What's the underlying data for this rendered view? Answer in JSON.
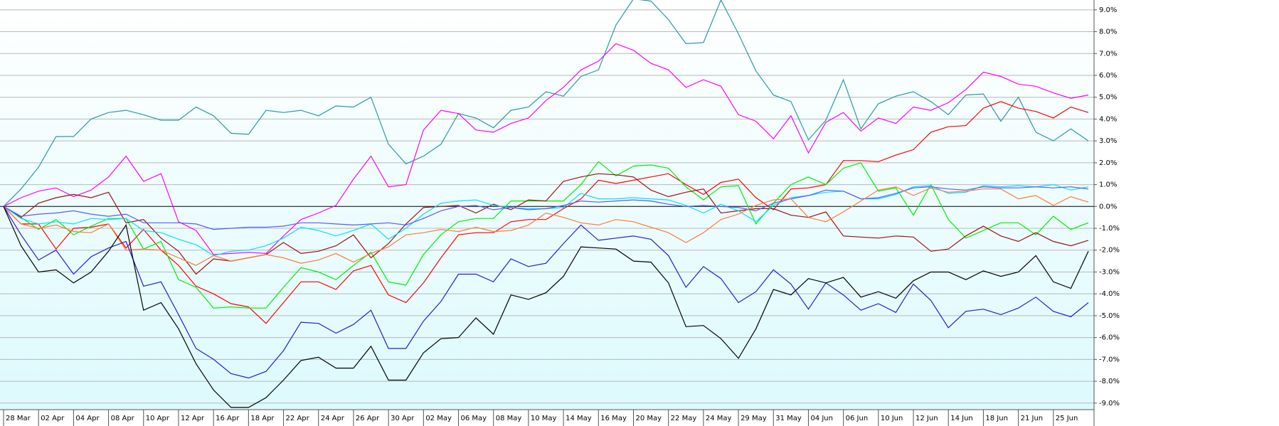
{
  "chart_data": {
    "type": "line",
    "categories": [
      "28 Mar",
      null,
      "02 Apr",
      null,
      "04 Apr",
      null,
      "08 Apr",
      null,
      "10 Apr",
      null,
      "12 Apr",
      null,
      "16 Apr",
      null,
      "18 Apr",
      null,
      "22 Apr",
      null,
      "24 Apr",
      null,
      "26 Apr",
      null,
      "30 Apr",
      null,
      "02 May",
      null,
      "06 May",
      null,
      "08 May",
      null,
      "10 May",
      null,
      "14 May",
      null,
      "16 May",
      null,
      "20 May",
      null,
      "22 May",
      null,
      "24 May",
      null,
      "29 May",
      null,
      "31 May",
      null,
      "04 Jun",
      null,
      "06 Jun",
      null,
      "10 Jun",
      null,
      "12 Jun",
      null,
      "14 Jun",
      null,
      "18 Jun",
      null,
      "21 Jun",
      null,
      "25 Jun",
      null,
      null
    ],
    "ylim": [
      -9.3,
      9.45
    ],
    "yticks": [
      {
        "value": -9,
        "label": "-9.0%"
      },
      {
        "value": -8,
        "label": "-8.0%"
      },
      {
        "value": -7,
        "label": "-7.0%"
      },
      {
        "value": -6,
        "label": "-6.0%"
      },
      {
        "value": -5,
        "label": "-5.0%"
      },
      {
        "value": -4,
        "label": "-4.0%"
      },
      {
        "value": -3,
        "label": "-3.0%"
      },
      {
        "value": -2,
        "label": "-2.0%"
      },
      {
        "value": -1,
        "label": "-1.0%"
      },
      {
        "value": 0,
        "label": "0.0%"
      },
      {
        "value": 1,
        "label": "1.0%"
      },
      {
        "value": 2,
        "label": "2.0%"
      },
      {
        "value": 3,
        "label": "3.0%"
      },
      {
        "value": 4,
        "label": "4.0%"
      },
      {
        "value": 5,
        "label": "5.0%"
      },
      {
        "value": 6,
        "label": "6.0%"
      },
      {
        "value": 7,
        "label": "7.0%"
      },
      {
        "value": 8,
        "label": "8.0%"
      },
      {
        "value": 9,
        "label": "9.0%"
      }
    ],
    "grid": true,
    "series": [
      {
        "color": "#2a9aa5",
        "values": [
          0,
          0.8,
          1.8,
          3.2,
          3.2,
          4.0,
          4.3,
          4.4,
          4.2,
          3.95,
          3.95,
          4.55,
          4.15,
          3.35,
          3.3,
          4.4,
          4.3,
          4.4,
          4.15,
          4.6,
          4.55,
          5.0,
          2.85,
          1.95,
          2.3,
          2.85,
          4.25,
          4.05,
          3.6,
          4.4,
          4.55,
          5.25,
          5.05,
          5.95,
          6.25,
          8.3,
          9.5,
          9.4,
          8.55,
          7.45,
          7.5,
          9.45,
          7.9,
          6.2,
          5.1,
          4.8,
          3.05,
          3.95,
          5.8,
          3.55,
          4.7,
          5.05,
          5.25,
          4.8,
          4.2,
          5.1,
          5.15,
          3.9,
          5.0,
          3.4,
          3.0,
          3.55,
          3.0
        ]
      },
      {
        "color": "#ff00ff",
        "values": [
          0,
          0.4,
          0.7,
          0.85,
          0.45,
          0.75,
          1.35,
          2.3,
          1.15,
          1.5,
          -0.7,
          -1.1,
          -2.2,
          -2.15,
          -2.1,
          -2.15,
          -1.35,
          -0.6,
          -0.3,
          0.05,
          1.25,
          2.3,
          0.9,
          1.0,
          3.5,
          4.4,
          4.25,
          3.5,
          3.4,
          3.8,
          4.05,
          4.85,
          5.45,
          6.25,
          6.65,
          7.45,
          7.15,
          6.55,
          6.25,
          5.45,
          5.8,
          5.5,
          4.2,
          3.9,
          3.1,
          4.15,
          2.45,
          3.85,
          4.3,
          3.45,
          4.05,
          3.8,
          4.55,
          4.4,
          4.75,
          5.35,
          6.15,
          5.95,
          5.6,
          5.5,
          5.2,
          4.95,
          5.1
        ]
      },
      {
        "color": "#ff0000",
        "values": [
          0,
          -0.8,
          -0.8,
          -1.95,
          -1.0,
          -0.95,
          -0.8,
          -1.9,
          -1.05,
          -2.0,
          -2.7,
          -3.65,
          -4.0,
          -4.45,
          -4.6,
          -5.35,
          -4.4,
          -3.45,
          -3.45,
          -3.8,
          -2.95,
          -2.7,
          -4.05,
          -4.4,
          -3.5,
          -2.35,
          -1.3,
          -1.2,
          -1.2,
          -0.7,
          -0.6,
          -0.6,
          -0.1,
          0.35,
          1.2,
          1.05,
          1.2,
          1.35,
          1.5,
          1.0,
          0.55,
          1.1,
          1.25,
          0.4,
          -0.15,
          0.8,
          0.85,
          1.0,
          2.1,
          2.1,
          2.05,
          2.35,
          2.6,
          3.4,
          3.65,
          3.7,
          4.5,
          4.8,
          4.5,
          4.35,
          4.05,
          4.55,
          4.3
        ]
      },
      {
        "color": "#00ee00",
        "values": [
          0,
          -0.5,
          -1.05,
          -0.6,
          -1.3,
          -0.9,
          -0.55,
          -0.55,
          -1.95,
          -1.6,
          -3.35,
          -3.7,
          -4.65,
          -4.6,
          -4.65,
          -4.65,
          -3.7,
          -2.8,
          -3.0,
          -3.35,
          -2.7,
          -2.1,
          -3.45,
          -3.6,
          -2.2,
          -1.3,
          -0.7,
          -0.55,
          -0.55,
          0.25,
          0.25,
          0.25,
          0.25,
          1.0,
          2.05,
          1.4,
          1.85,
          1.9,
          1.75,
          0.9,
          0.3,
          0.9,
          0.95,
          -0.8,
          0.15,
          1.0,
          1.35,
          1.0,
          1.75,
          2.0,
          0.7,
          0.85,
          -0.4,
          1.0,
          -0.6,
          -1.45,
          -1.1,
          -0.75,
          -0.75,
          -1.3,
          -0.45,
          -1.05,
          -0.75
        ]
      },
      {
        "color": "#a01010",
        "values": [
          0,
          -0.5,
          0.15,
          0.4,
          0.55,
          0.4,
          0.65,
          -0.75,
          -0.6,
          -1.45,
          -2.05,
          -3.1,
          -2.4,
          -2.5,
          -2.35,
          -2.2,
          -1.65,
          -2.15,
          -2.05,
          -1.8,
          -1.3,
          -2.35,
          -1.7,
          -0.8,
          -0.05,
          0.0,
          0.05,
          -0.3,
          0.1,
          -0.15,
          0.3,
          0.25,
          1.15,
          1.35,
          1.5,
          1.45,
          1.35,
          0.75,
          0.45,
          0.65,
          0.8,
          -0.3,
          -0.2,
          -0.1,
          -0.1,
          -0.4,
          -0.5,
          -0.25,
          -1.35,
          -1.4,
          -1.45,
          -1.35,
          -1.4,
          -2.05,
          -1.95,
          -1.35,
          -0.9,
          -1.35,
          -1.6,
          -1.2,
          -1.6,
          -1.8,
          -1.55
        ]
      },
      {
        "color": "#00e0ff",
        "values": [
          0,
          -0.55,
          -0.8,
          -0.7,
          -0.8,
          -0.55,
          -0.6,
          -0.55,
          -1.1,
          -1.2,
          -1.5,
          -1.75,
          -2.25,
          -2.05,
          -2.0,
          -1.8,
          -1.45,
          -0.95,
          -1.1,
          -1.35,
          -1.1,
          -0.8,
          -1.5,
          -1.0,
          -0.35,
          0.15,
          0.25,
          0.3,
          0.05,
          -0.05,
          -0.1,
          -0.1,
          -0.05,
          0.6,
          0.35,
          0.35,
          0.4,
          0.35,
          0.3,
          0.05,
          -0.3,
          0.1,
          -0.2,
          -0.7,
          0.05,
          0.4,
          0.5,
          0.65,
          0.7,
          0.35,
          0.35,
          0.55,
          0.9,
          0.95,
          0.6,
          0.65,
          0.95,
          0.9,
          0.95,
          0.9,
          1.0,
          0.75,
          0.9
        ]
      },
      {
        "color": "#5a5aff",
        "values": [
          0,
          -0.45,
          -0.35,
          -0.3,
          -0.2,
          -0.35,
          -0.45,
          -0.35,
          -0.75,
          -0.75,
          -0.75,
          -0.8,
          -1.05,
          -1.0,
          -0.95,
          -0.95,
          -0.9,
          -0.75,
          -0.75,
          -0.8,
          -0.85,
          -0.8,
          -0.75,
          -0.85,
          -0.55,
          -0.2,
          0.0,
          0.05,
          -0.15,
          -0.05,
          -0.15,
          -0.1,
          0.05,
          0.25,
          0.2,
          0.25,
          0.3,
          0.25,
          0.1,
          0.0,
          0.05,
          0.0,
          -0.05,
          -0.2,
          0.15,
          0.35,
          0.5,
          0.75,
          0.7,
          0.35,
          0.4,
          0.6,
          0.85,
          0.9,
          0.8,
          0.75,
          0.9,
          0.85,
          0.85,
          0.9,
          0.85,
          0.9,
          0.8
        ]
      },
      {
        "color": "#ff7a3a",
        "values": [
          0,
          -0.8,
          -1.0,
          -0.85,
          -1.15,
          -1.2,
          -0.8,
          -2.0,
          -1.95,
          -2.0,
          -2.35,
          -2.7,
          -2.25,
          -2.5,
          -2.35,
          -2.2,
          -2.35,
          -2.6,
          -2.45,
          -2.15,
          -2.55,
          -2.15,
          -1.85,
          -1.3,
          -1.2,
          -1.05,
          -1.15,
          -0.95,
          -1.15,
          -1.1,
          -0.85,
          -0.3,
          -0.5,
          -0.75,
          -0.85,
          -0.6,
          -0.7,
          -0.95,
          -1.2,
          -1.65,
          -1.2,
          -0.6,
          -0.35,
          0.05,
          0.3,
          0.35,
          -0.5,
          -0.7,
          -0.25,
          0.25,
          0.75,
          0.9,
          0.5,
          0.85,
          0.65,
          0.7,
          0.8,
          0.8,
          0.35,
          0.5,
          0.05,
          0.45,
          0.2
        ]
      },
      {
        "color": "#2a1ad0",
        "values": [
          0,
          -1.3,
          -2.45,
          -2.0,
          -3.1,
          -2.3,
          -1.9,
          -1.6,
          -3.65,
          -3.45,
          -4.95,
          -6.5,
          -7.0,
          -7.65,
          -7.85,
          -7.55,
          -6.6,
          -5.3,
          -5.35,
          -5.8,
          -5.4,
          -4.75,
          -6.5,
          -6.5,
          -5.25,
          -4.35,
          -3.1,
          -3.1,
          -3.45,
          -2.4,
          -2.75,
          -2.6,
          -1.7,
          -0.85,
          -1.55,
          -1.45,
          -1.35,
          -1.5,
          -2.25,
          -3.7,
          -2.75,
          -3.3,
          -4.4,
          -3.9,
          -2.9,
          -3.55,
          -4.7,
          -3.5,
          -4.05,
          -4.75,
          -4.45,
          -4.85,
          -3.55,
          -4.3,
          -5.55,
          -4.8,
          -4.7,
          -4.95,
          -4.65,
          -4.15,
          -4.8,
          -5.05,
          -4.4
        ]
      },
      {
        "color": "#000000",
        "values": [
          0,
          -1.8,
          -3.0,
          -2.9,
          -3.5,
          -3.0,
          -2.05,
          -0.85,
          -4.75,
          -4.4,
          -5.6,
          -7.2,
          -8.4,
          -9.2,
          -9.2,
          -8.75,
          -7.95,
          -7.05,
          -6.9,
          -7.4,
          -7.4,
          -6.4,
          -7.95,
          -7.95,
          -6.7,
          -6.05,
          -6.0,
          -5.1,
          -5.85,
          -4.05,
          -4.25,
          -3.95,
          -3.2,
          -1.85,
          -1.9,
          -1.95,
          -2.5,
          -2.55,
          -3.5,
          -5.5,
          -5.45,
          -6.05,
          -6.95,
          -5.6,
          -3.8,
          -4.05,
          -3.3,
          -3.5,
          -3.25,
          -4.15,
          -3.9,
          -4.2,
          -3.4,
          -3.0,
          -3.0,
          -3.35,
          -2.95,
          -3.2,
          -3.0,
          -2.25,
          -3.45,
          -3.75,
          -2.05
        ]
      }
    ]
  }
}
